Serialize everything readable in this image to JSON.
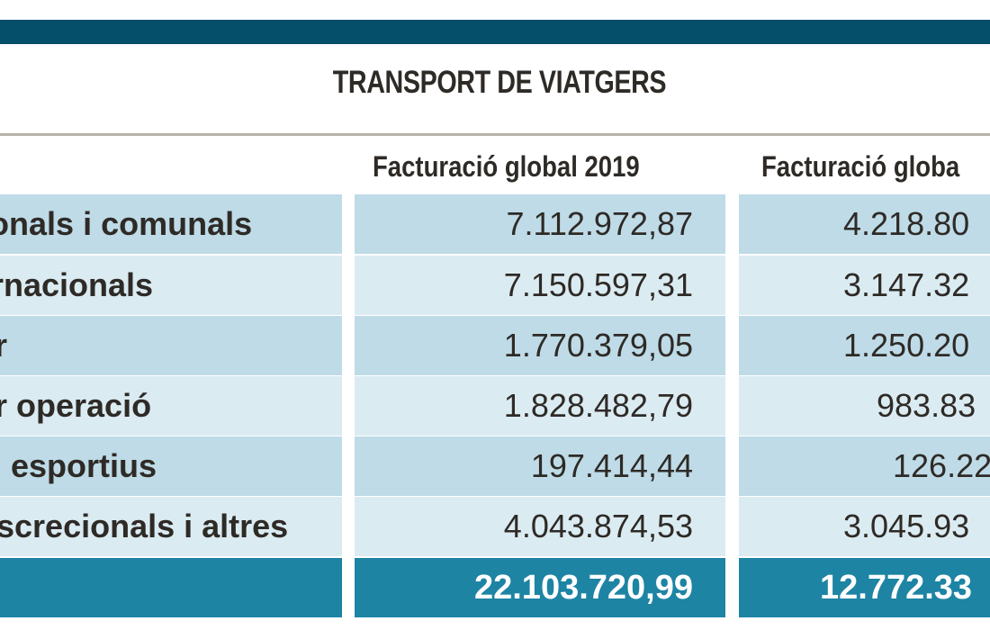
{
  "title": "TRANSPORT DE VIATGERS",
  "headers": {
    "col_2019": "Facturació global 2019",
    "col_2020": "Facturació globa"
  },
  "rows": [
    {
      "label": "acionals i comunals",
      "v2019": "7.112.972,87",
      "v2020": "4.218.80"
    },
    {
      "label": "ternacionals",
      "v2019": "7.150.597,31",
      "v2020": "3.147.32"
    },
    {
      "label": "r",
      "v2019": "1.770.379,05",
      "v2020": "1.250.20"
    },
    {
      "label": "r operació",
      "v2019": "1.828.482,79",
      "v2020": "983.83"
    },
    {
      "label": "esportius",
      "v2019": "197.414,44",
      "v2020": "126.22"
    },
    {
      "label": "screcionals i altres",
      "v2019": "4.043.874,53",
      "v2020": "3.045.93"
    }
  ],
  "total": {
    "v2019": "22.103.720,99",
    "v2020": "12.772.33"
  },
  "colors": {
    "top_bar": "#064f6b",
    "row_dark": "#bedbe7",
    "row_light": "#dbebf2",
    "total_row": "#1d84a4"
  }
}
